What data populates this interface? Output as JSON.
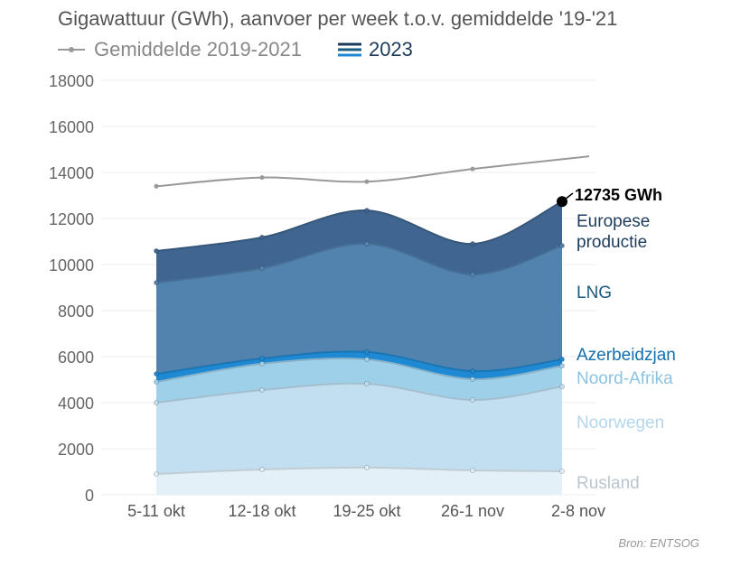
{
  "chart_data": {
    "type": "area",
    "stacked": true,
    "title": "Gigawattuur (GWh), aanvoer per week t.o.v. gemiddelde '19-'21",
    "legend": {
      "average": "Gemiddelde 2019-2021",
      "current": "2023"
    },
    "categories": [
      "5-11 okt",
      "12-18 okt",
      "19-25 okt",
      "26-1 nov",
      "2-8 nov"
    ],
    "ylim": [
      0,
      18000
    ],
    "yticks": [
      "0",
      "2000",
      "4000",
      "6000",
      "8000",
      "10000",
      "12000",
      "14000",
      "16000",
      "18000"
    ],
    "series": [
      {
        "name": "Rusland",
        "values": [
          900,
          1100,
          1180,
          1060,
          1020
        ],
        "color": "#e3f0f8",
        "label_color": "#bcc5cc"
      },
      {
        "name": "Noorwegen",
        "values": [
          3100,
          3450,
          3640,
          3060,
          3680
        ],
        "color": "#c2dff1",
        "label_color": "#b5d6ec"
      },
      {
        "name": "Noord-Afrika",
        "values": [
          900,
          1140,
          1060,
          900,
          900
        ],
        "color": "#9fd0ea",
        "label_color": "#8cc3e0"
      },
      {
        "name": "Azerbeidzjan",
        "values": [
          350,
          230,
          320,
          350,
          280
        ],
        "color": "#1f8ad3",
        "label_color": "#146fae"
      },
      {
        "name": "LNG",
        "values": [
          3960,
          3920,
          4700,
          4200,
          4940
        ],
        "color": "#5283af",
        "label_color": "#1d5a80"
      },
      {
        "name": "Europese productie",
        "label_lines": [
          "Europese",
          "productie"
        ],
        "values": [
          1380,
          1340,
          1450,
          1330,
          1915
        ],
        "color": "#3f6590",
        "label_color": "#1d3c5c"
      }
    ],
    "average_line": {
      "name": "Gemiddelde 2019-2021",
      "values": [
        13400,
        13780,
        13600,
        14150,
        14700
      ],
      "color": "#999999"
    },
    "annotation": "12735 GWh",
    "source": "Bron: ENTSOG"
  }
}
